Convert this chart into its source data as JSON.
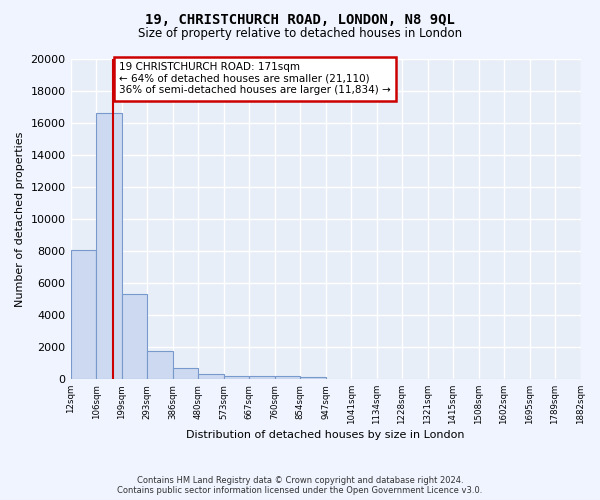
{
  "title": "19, CHRISTCHURCH ROAD, LONDON, N8 9QL",
  "subtitle": "Size of property relative to detached houses in London",
  "xlabel": "Distribution of detached houses by size in London",
  "ylabel": "Number of detached properties",
  "footnote1": "Contains HM Land Registry data © Crown copyright and database right 2024.",
  "footnote2": "Contains public sector information licensed under the Open Government Licence v3.0.",
  "bin_labels": [
    "12sqm",
    "106sqm",
    "199sqm",
    "293sqm",
    "386sqm",
    "480sqm",
    "573sqm",
    "667sqm",
    "760sqm",
    "854sqm",
    "947sqm",
    "1041sqm",
    "1134sqm",
    "1228sqm",
    "1321sqm",
    "1415sqm",
    "1508sqm",
    "1602sqm",
    "1695sqm",
    "1789sqm",
    "1882sqm"
  ],
  "bar_heights": [
    8100,
    16600,
    5300,
    1750,
    700,
    300,
    230,
    190,
    170,
    130,
    0,
    0,
    0,
    0,
    0,
    0,
    0,
    0,
    0,
    0
  ],
  "bar_color": "#ccd9f0",
  "bar_edge_color": "#7799cc",
  "background_color": "#e8eef8",
  "grid_color": "#ffffff",
  "property_line_x": 1.65,
  "annotation_text": "19 CHRISTCHURCH ROAD: 171sqm\n← 64% of detached houses are smaller (21,110)\n36% of semi-detached houses are larger (11,834) →",
  "annotation_box_color": "#ffffff",
  "annotation_box_edge": "#cc0000",
  "ylim": [
    0,
    20000
  ],
  "yticks": [
    0,
    2000,
    4000,
    6000,
    8000,
    10000,
    12000,
    14000,
    16000,
    18000,
    20000
  ],
  "fig_bg_color": "#f0f4ff"
}
